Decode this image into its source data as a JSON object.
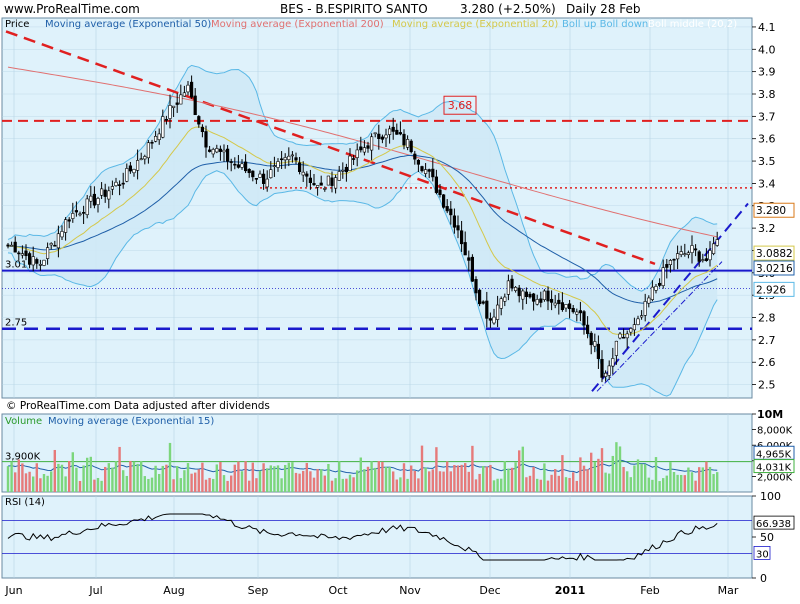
{
  "header": {
    "source": "www.ProRealTime.com",
    "title": "BES - B.ESPIRITO SANTO",
    "quote": "3.280 (+2.50%)",
    "period": "Daily  28 Feb"
  },
  "footer_note": "© ProRealTime.com  Data adjusted after dividends",
  "colors": {
    "background": "#ffffff",
    "panel_bg": "#dff2fb",
    "grid": "#b8d4e6",
    "bullish": "#ffffff",
    "bearish": "#000000",
    "ema50": "#1f5fa8",
    "ema200": "#e07070",
    "ema20": "#d4c84a",
    "bollinger": "#5ab8e6",
    "boll_fill": "#cfe9f6",
    "blue_line": "#1a1acc",
    "red_line": "#e02020",
    "volume_up": "#7cd67c",
    "volume_down": "#e67a7a"
  },
  "chart_data": [
    {
      "type": "candlestick",
      "name": "Price",
      "legend": [
        "Price",
        "Moving average (Exponential 50)",
        "Moving average (Exponential 200)",
        "Moving average (Exponential 20)",
        "Boll up Boll down",
        "Boll middle (20,2)"
      ],
      "x_tick_labels": [
        "Jun",
        "Jul",
        "Aug",
        "Sep",
        "Oct",
        "Nov",
        "Dec",
        "2011",
        "Feb",
        "Mar"
      ],
      "y_ticks": [
        2.5,
        2.6,
        2.7,
        2.8,
        2.9,
        3.0,
        3.1,
        3.2,
        3.3,
        3.4,
        3.5,
        3.6,
        3.7,
        3.8,
        3.9,
        4.0,
        4.1
      ],
      "ylim": [
        2.44,
        4.14
      ],
      "price_path": [
        {
          "date": "2010-06-01",
          "close": 3.12
        },
        {
          "date": "2010-06-10",
          "close": 3.03
        },
        {
          "date": "2010-06-21",
          "close": 3.25
        },
        {
          "date": "2010-07-01",
          "close": 3.33
        },
        {
          "date": "2010-07-12",
          "close": 3.42
        },
        {
          "date": "2010-07-21",
          "close": 3.55
        },
        {
          "date": "2010-07-30",
          "close": 3.72
        },
        {
          "date": "2010-08-06",
          "close": 3.83
        },
        {
          "date": "2010-08-13",
          "close": 3.58
        },
        {
          "date": "2010-08-24",
          "close": 3.48
        },
        {
          "date": "2010-09-03",
          "close": 3.42
        },
        {
          "date": "2010-09-14",
          "close": 3.52
        },
        {
          "date": "2010-09-24",
          "close": 3.37
        },
        {
          "date": "2010-10-05",
          "close": 3.48
        },
        {
          "date": "2010-10-14",
          "close": 3.58
        },
        {
          "date": "2010-10-22",
          "close": 3.64
        },
        {
          "date": "2010-11-01",
          "close": 3.57
        },
        {
          "date": "2010-11-10",
          "close": 3.4
        },
        {
          "date": "2010-11-19",
          "close": 3.2
        },
        {
          "date": "2010-11-26",
          "close": 2.92
        },
        {
          "date": "2010-12-01",
          "close": 2.79
        },
        {
          "date": "2010-12-08",
          "close": 2.95
        },
        {
          "date": "2010-12-15",
          "close": 2.88
        },
        {
          "date": "2010-12-24",
          "close": 2.9
        },
        {
          "date": "2011-01-04",
          "close": 2.82
        },
        {
          "date": "2011-01-11",
          "close": 2.66
        },
        {
          "date": "2011-01-14",
          "close": 2.5
        },
        {
          "date": "2011-01-20",
          "close": 2.7
        },
        {
          "date": "2011-01-27",
          "close": 2.76
        },
        {
          "date": "2011-02-02",
          "close": 2.92
        },
        {
          "date": "2011-02-09",
          "close": 3.06
        },
        {
          "date": "2011-02-16",
          "close": 3.1
        },
        {
          "date": "2011-02-22",
          "close": 3.05
        },
        {
          "date": "2011-02-28",
          "close": 3.28
        }
      ],
      "annotations": {
        "resistance_box": "3,68",
        "level_3_68": 3.68,
        "level_3_38": 3.38,
        "level_3_01": 3.01,
        "level_2_75": 2.75,
        "level_3_01_label": "3.01",
        "level_2_75_label": "2.75"
      },
      "last_values": [
        {
          "label": "3.280",
          "value": 3.28,
          "color": "#d97a1a"
        },
        {
          "label": "3.0882",
          "value": 3.0882,
          "color": "#d4c84a"
        },
        {
          "label": "3.0216",
          "value": 3.0216,
          "color": "#1f5fa8"
        },
        {
          "label": "2.926",
          "value": 2.926,
          "color": "#5ab8e6"
        }
      ]
    },
    {
      "type": "bar",
      "name": "Volume",
      "legend": [
        "Volume",
        "Moving average (Exponential 15)"
      ],
      "y_tick_labels": [
        "10M",
        "8,000K",
        "6,000K",
        "4,000K",
        "2,000K"
      ],
      "y_tick_values": [
        10000,
        8000,
        6000,
        4000,
        2000
      ],
      "ylim": [
        0,
        10000
      ],
      "ref_label": "3,900K",
      "ref_value": 3900,
      "ema_label": "4,965K",
      "last_label": "4,031K"
    },
    {
      "type": "line",
      "name": "RSI (14)",
      "legend": [
        "RSI (14)"
      ],
      "y_ticks": [
        0,
        50,
        100
      ],
      "ylim": [
        0,
        100
      ],
      "bands": [
        70,
        30
      ],
      "last_label": "66.938",
      "band_label": "30"
    }
  ]
}
